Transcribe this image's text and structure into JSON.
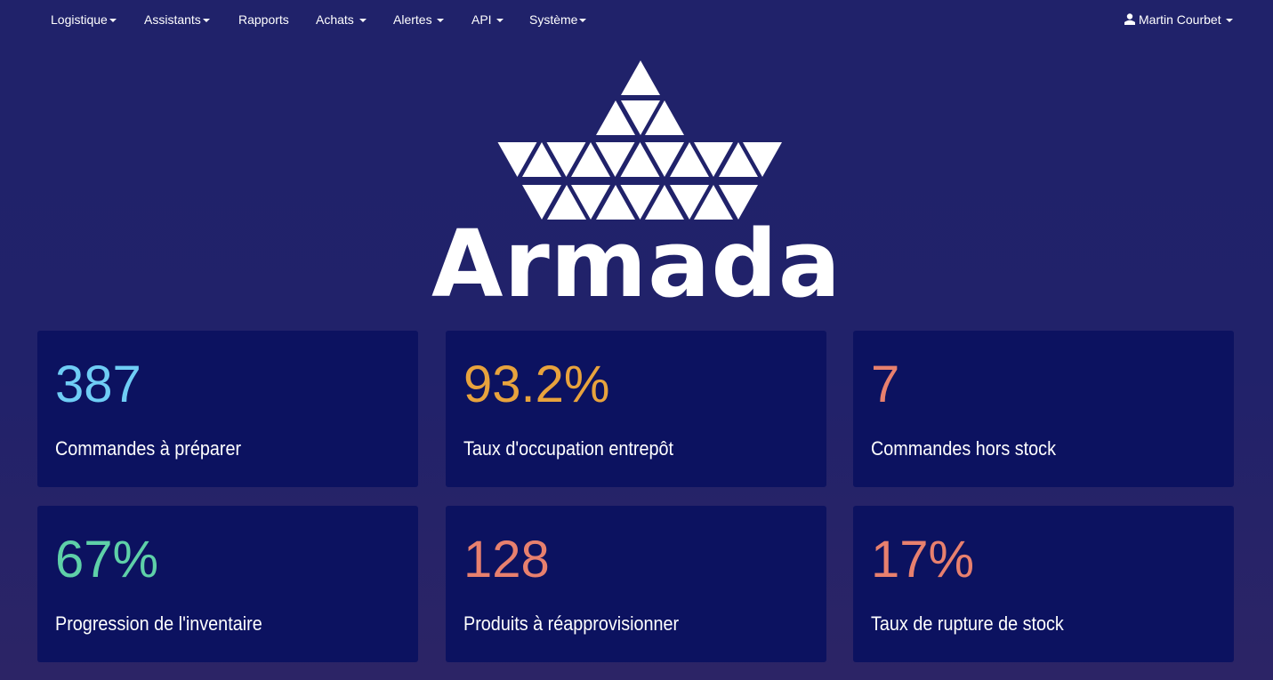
{
  "nav": {
    "items": [
      {
        "label": "Logistique",
        "dropdown": true
      },
      {
        "label": "Assistants",
        "dropdown": true
      },
      {
        "label": "Rapports",
        "dropdown": false
      },
      {
        "label": "Achats",
        "dropdown": true
      },
      {
        "label": "Alertes",
        "dropdown": true
      },
      {
        "label": "API",
        "dropdown": true
      },
      {
        "label": "Système",
        "dropdown": true
      }
    ],
    "user": {
      "name": "Martin Courbet",
      "icon": "user-icon"
    }
  },
  "logo": {
    "text": "Armada"
  },
  "colors": {
    "background": "#20226a",
    "card": "#0c1260",
    "blue": "#6fcdf5",
    "orange": "#e8a33d",
    "salmon": "#e8806e",
    "green": "#5ed0a8"
  },
  "cards": [
    {
      "value": "387",
      "label": "Commandes à préparer",
      "color": "#6fcdf5"
    },
    {
      "value": "93.2%",
      "label": "Taux d'occupation entrepôt",
      "color": "#e8a33d"
    },
    {
      "value": "7",
      "label": "Commandes hors stock",
      "color": "#e8806e"
    },
    {
      "value": "67%",
      "label": "Progression de l'inventaire",
      "color": "#5ed0a8"
    },
    {
      "value": "128",
      "label": "Produits à réapprovisionner",
      "color": "#e8806e"
    },
    {
      "value": "17%",
      "label": "Taux de rupture de stock",
      "color": "#e8806e"
    }
  ]
}
